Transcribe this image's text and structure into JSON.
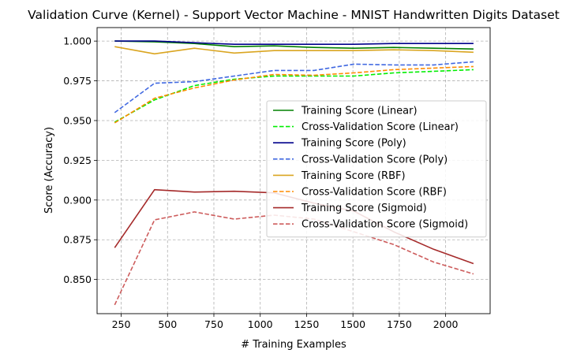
{
  "chart_data": {
    "type": "line",
    "title": "Validation Curve (Kernel) - Support Vector Machine - MNIST Handwritten Digits Dataset",
    "xlabel": "# Training Examples",
    "ylabel": "Score (Accuracy)",
    "xlim": [
      120,
      2240
    ],
    "ylim": [
      0.8285,
      1.0085
    ],
    "x_ticks": [
      250,
      500,
      750,
      1000,
      1250,
      1500,
      1750,
      2000
    ],
    "y_ticks": [
      0.85,
      0.875,
      0.9,
      0.925,
      0.95,
      0.975,
      1.0
    ],
    "x_tick_labels": [
      "250",
      "500",
      "750",
      "1000",
      "1250",
      "1500",
      "1750",
      "2000"
    ],
    "y_tick_labels": [
      "0.850",
      "0.875",
      "0.900",
      "0.925",
      "0.950",
      "0.975",
      "1.000"
    ],
    "grid": true,
    "legend_position": "center-right",
    "x": [
      215,
      430,
      645,
      860,
      1075,
      1290,
      1505,
      1720,
      1935,
      2150
    ],
    "series": [
      {
        "name": "Training Score (Linear)",
        "color": "#008000",
        "dash": "solid",
        "values": [
          1.0,
          0.9995,
          0.9985,
          0.9965,
          0.997,
          0.996,
          0.9955,
          0.996,
          0.9955,
          0.995
        ]
      },
      {
        "name": "Cross-Validation Score (Linear)",
        "color": "#00ee00",
        "dash": "dashed",
        "values": [
          0.949,
          0.963,
          0.972,
          0.976,
          0.978,
          0.978,
          0.978,
          0.98,
          0.981,
          0.982
        ]
      },
      {
        "name": "Training Score (Poly)",
        "color": "#00008b",
        "dash": "solid",
        "values": [
          1.0,
          1.0,
          0.999,
          0.998,
          0.998,
          0.998,
          0.998,
          0.9985,
          0.9985,
          0.9985
        ]
      },
      {
        "name": "Cross-Validation Score (Poly)",
        "color": "#4169e1",
        "dash": "dashed",
        "values": [
          0.955,
          0.9735,
          0.9745,
          0.978,
          0.9815,
          0.9815,
          0.9855,
          0.985,
          0.985,
          0.987
        ]
      },
      {
        "name": "Training Score (RBF)",
        "color": "#daa520",
        "dash": "solid",
        "values": [
          0.9965,
          0.992,
          0.9955,
          0.9925,
          0.994,
          0.994,
          0.994,
          0.9945,
          0.994,
          0.993
        ]
      },
      {
        "name": "Cross-Validation Score (RBF)",
        "color": "#ff8c00",
        "dash": "dashed",
        "values": [
          0.9485,
          0.964,
          0.9705,
          0.9755,
          0.979,
          0.9785,
          0.98,
          0.982,
          0.983,
          0.984
        ]
      },
      {
        "name": "Training Score (Sigmoid)",
        "color": "#a52a2a",
        "dash": "solid",
        "values": [
          0.87,
          0.9065,
          0.905,
          0.9055,
          0.9045,
          0.898,
          0.893,
          0.88,
          0.869,
          0.86
        ]
      },
      {
        "name": "Cross-Validation Score (Sigmoid)",
        "color": "#cd5c5c",
        "dash": "dashed",
        "values": [
          0.834,
          0.8875,
          0.8925,
          0.888,
          0.8905,
          0.888,
          0.88,
          0.872,
          0.861,
          0.8535
        ]
      }
    ]
  }
}
